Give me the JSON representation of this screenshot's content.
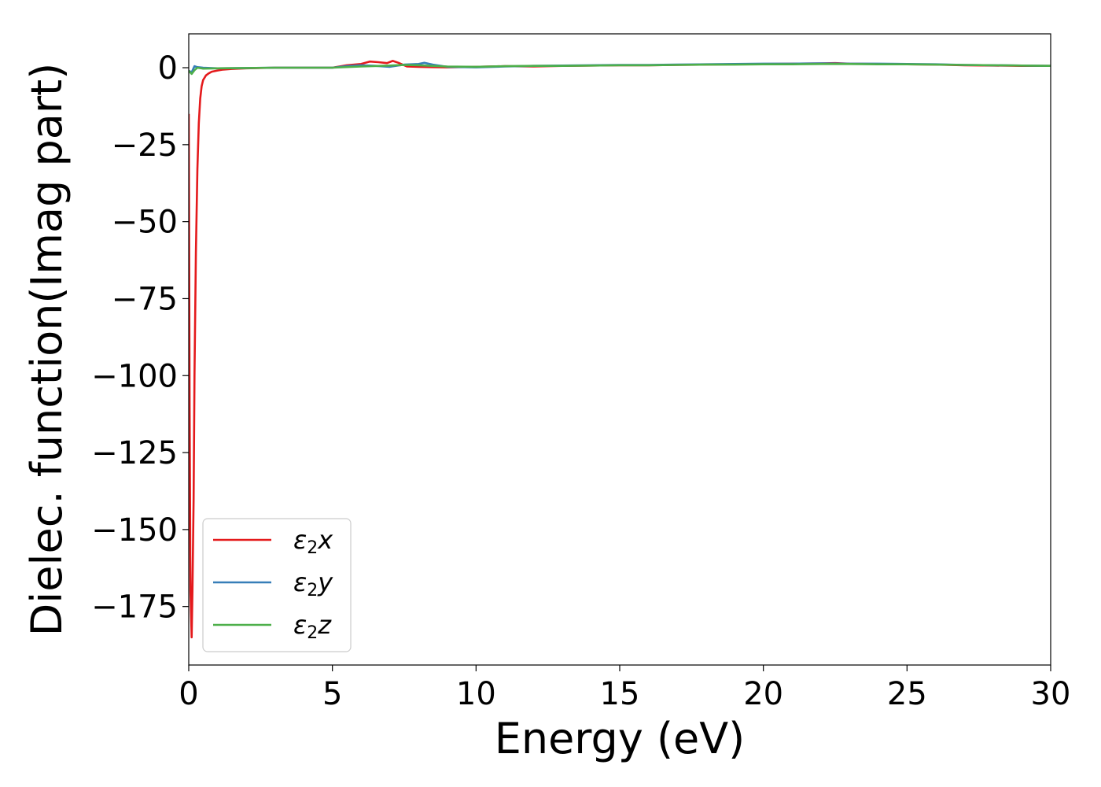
{
  "chart_data": {
    "type": "line",
    "xlabel": "Energy (eV)",
    "ylabel": "Dielec. function(Imag part)",
    "xlim": [
      0,
      30
    ],
    "ylim": [
      -194,
      11
    ],
    "xticks": [
      0,
      5,
      10,
      15,
      20,
      25,
      30
    ],
    "yticks": [
      0,
      -25,
      -50,
      -75,
      -100,
      -125,
      -150,
      -175
    ],
    "xtick_labels": [
      "0",
      "5",
      "10",
      "15",
      "20",
      "25",
      "30"
    ],
    "ytick_labels": [
      "0",
      "−25",
      "−50",
      "−75",
      "−100",
      "−125",
      "−150",
      "−175"
    ],
    "grid": false,
    "legend_position": "lower-left",
    "series": [
      {
        "name": "ε₂x",
        "legend_base": "ε",
        "legend_sub": "2",
        "legend_tail": "x",
        "color": "#e41a1c",
        "x": [
          0,
          0.03,
          0.06,
          0.1,
          0.13,
          0.17,
          0.2,
          0.25,
          0.3,
          0.35,
          0.4,
          0.45,
          0.5,
          0.6,
          0.7,
          0.8,
          1.0,
          1.2,
          1.5,
          2.0,
          3.0,
          4.0,
          5.0,
          5.5,
          6.0,
          6.3,
          6.6,
          6.9,
          7.1,
          7.3,
          7.6,
          8.0,
          8.5,
          9.0,
          10.0,
          11.0,
          12.0,
          13.0,
          14.0,
          15.0,
          16.0,
          17.0,
          18.0,
          19.0,
          20.0,
          21.0,
          22.0,
          22.5,
          23.0,
          24.0,
          25.0,
          26.0,
          27.0,
          28.0,
          29.0,
          30.0
        ],
        "y": [
          -15,
          -110,
          -170,
          -185,
          -170,
          -140,
          -100,
          -60,
          -33,
          -18,
          -10,
          -6,
          -4,
          -2.5,
          -1.8,
          -1.3,
          -0.9,
          -0.6,
          -0.4,
          -0.2,
          0,
          0,
          0,
          0.8,
          1.2,
          2.0,
          1.8,
          1.5,
          2.2,
          1.6,
          0.4,
          0.3,
          0.2,
          0.1,
          0.3,
          0.5,
          0.4,
          0.6,
          0.7,
          0.8,
          0.8,
          0.9,
          1.0,
          1.1,
          1.2,
          1.3,
          1.4,
          1.5,
          1.3,
          1.2,
          1.1,
          1.0,
          0.8,
          0.7,
          0.6,
          0.6
        ]
      },
      {
        "name": "ε₂y",
        "legend_base": "ε",
        "legend_sub": "2",
        "legend_tail": "y",
        "color": "#377eb8",
        "x": [
          0,
          0.1,
          0.2,
          0.3,
          0.5,
          1.0,
          2.0,
          3.0,
          4.0,
          5.0,
          5.5,
          6.0,
          6.5,
          7.0,
          7.5,
          8.0,
          8.2,
          8.5,
          9.0,
          10.0,
          11.0,
          12.0,
          13.0,
          14.0,
          15.0,
          16.0,
          17.0,
          18.0,
          19.0,
          20.0,
          21.0,
          22.0,
          23.0,
          24.0,
          25.0,
          26.0,
          27.0,
          28.0,
          29.0,
          30.0
        ],
        "y": [
          -1,
          -1.5,
          0.5,
          0.2,
          0,
          -0.2,
          -0.1,
          0,
          0,
          0,
          0.5,
          0.8,
          0.6,
          0.3,
          1.0,
          1.2,
          1.6,
          1.0,
          0.3,
          0.1,
          0.4,
          0.6,
          0.7,
          0.8,
          0.9,
          0.9,
          1.0,
          1.1,
          1.2,
          1.3,
          1.3,
          1.4,
          1.3,
          1.3,
          1.2,
          1.1,
          0.9,
          0.8,
          0.7,
          0.6
        ]
      },
      {
        "name": "ε₂z",
        "legend_base": "ε",
        "legend_sub": "2",
        "legend_tail": "z",
        "color": "#4daf4a",
        "x": [
          0,
          0.1,
          0.2,
          0.3,
          0.5,
          1.0,
          2.0,
          3.0,
          4.0,
          5.0,
          6.0,
          7.0,
          7.5,
          8.0,
          9.0,
          10.0,
          11.0,
          12.0,
          13.0,
          14.0,
          15.0,
          16.0,
          17.0,
          18.0,
          19.0,
          20.0,
          21.0,
          22.0,
          23.0,
          24.0,
          25.0,
          26.0,
          27.0,
          28.0,
          29.0,
          30.0
        ],
        "y": [
          -1,
          -2,
          -0.8,
          0,
          -0.3,
          -0.2,
          -0.1,
          0,
          0,
          0,
          0.4,
          0.7,
          0.9,
          0.8,
          0.4,
          0.3,
          0.5,
          0.6,
          0.6,
          0.7,
          0.8,
          0.8,
          0.9,
          1.0,
          1.0,
          1.1,
          1.1,
          1.2,
          1.2,
          1.1,
          1.1,
          1.0,
          0.9,
          0.8,
          0.7,
          0.6
        ]
      }
    ]
  }
}
